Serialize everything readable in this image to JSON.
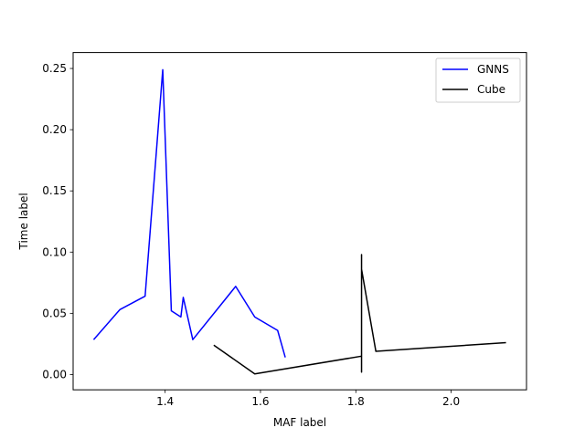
{
  "chart_data": {
    "type": "line",
    "title": "",
    "xlabel": "MAF label",
    "ylabel": "Time label",
    "xlim": [
      1.207,
      2.158
    ],
    "ylim": [
      -0.0125,
      0.263
    ],
    "xticks": [
      1.4,
      1.6,
      1.8,
      2.0
    ],
    "xtick_labels": [
      "1.4",
      "1.6",
      "1.8",
      "2.0"
    ],
    "yticks": [
      0.0,
      0.05,
      0.1,
      0.15,
      0.2,
      0.25
    ],
    "ytick_labels": [
      "0.00",
      "0.05",
      "0.10",
      "0.15",
      "0.20",
      "0.25"
    ],
    "grid": false,
    "legend_position": "top-right",
    "series": [
      {
        "name": "GNNS",
        "color": "#0000ff",
        "x": [
          1.25,
          1.305,
          1.358,
          1.395,
          1.413,
          1.433,
          1.438,
          1.458,
          1.548,
          1.588,
          1.636,
          1.652
        ],
        "y": [
          0.0285,
          0.053,
          0.064,
          0.249,
          0.052,
          0.047,
          0.063,
          0.0285,
          0.072,
          0.047,
          0.036,
          0.014
        ]
      },
      {
        "name": "Cube",
        "color": "#000000",
        "x": [
          1.502,
          1.588,
          1.812,
          1.812,
          1.812,
          1.812,
          1.812,
          1.812,
          1.812,
          1.842,
          2.115
        ],
        "y": [
          0.024,
          0.0005,
          0.015,
          0.002,
          0.098,
          0.041,
          0.097,
          0.003,
          0.086,
          0.019,
          0.026
        ]
      }
    ]
  }
}
